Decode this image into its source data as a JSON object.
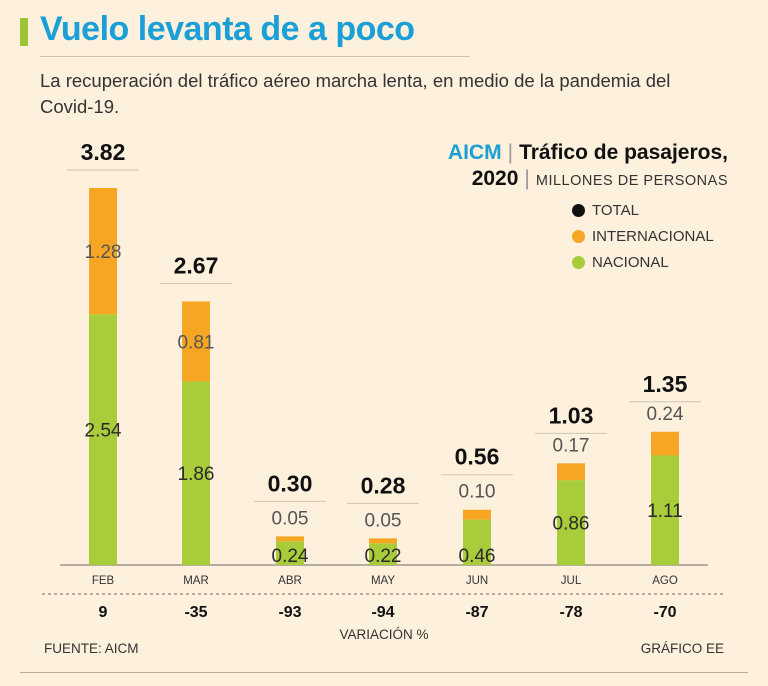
{
  "title": "Vuelo levanta de a poco",
  "subtitle": "La recuperación del tráfico aéreo marcha lenta, en medio de la pandemia del Covid-19.",
  "header": {
    "source_name": "AICM",
    "chart_title": "Tráfico de pasajeros,",
    "year": "2020",
    "units": "MILLONES DE PERSONAS"
  },
  "legend": {
    "total": "TOTAL",
    "internacional": "INTERNACIONAL",
    "nacional": "NACIONAL"
  },
  "colors": {
    "total": "#111111",
    "internacional": "#f6a623",
    "nacional": "#a8cc3a",
    "title": "#1a9fd6",
    "background": "#fdf0dc"
  },
  "footer": {
    "source": "FUENTE: AICM",
    "credit": "GRÁFICO EE",
    "variation_label": "VARIACIÓN %"
  },
  "chart_data": {
    "type": "bar",
    "stacked": true,
    "categories": [
      "FEB",
      "MAR",
      "ABR",
      "MAY",
      "JUN",
      "JUL",
      "AGO"
    ],
    "series": [
      {
        "name": "NACIONAL",
        "values": [
          2.54,
          1.86,
          0.24,
          0.22,
          0.46,
          0.86,
          1.11
        ],
        "labels": [
          "2.54",
          "1.86",
          "0.24",
          "0.22",
          "0.46",
          "0.86",
          "1.11"
        ]
      },
      {
        "name": "INTERNACIONAL",
        "values": [
          1.28,
          0.81,
          0.05,
          0.05,
          0.1,
          0.17,
          0.24
        ],
        "labels": [
          "1.28",
          "0.81",
          "0.05",
          "0.05",
          "0.10",
          "0.17",
          "0.24"
        ]
      }
    ],
    "totals": [
      "3.82",
      "2.67",
      "0.30",
      "0.28",
      "0.56",
      "1.03",
      "1.35"
    ],
    "total_values": [
      3.82,
      2.67,
      0.3,
      0.28,
      0.56,
      1.03,
      1.35
    ],
    "variation": [
      "9",
      "-35",
      "-93",
      "-94",
      "-87",
      "-78",
      "-70"
    ],
    "ylim": [
      0,
      3.82
    ]
  }
}
